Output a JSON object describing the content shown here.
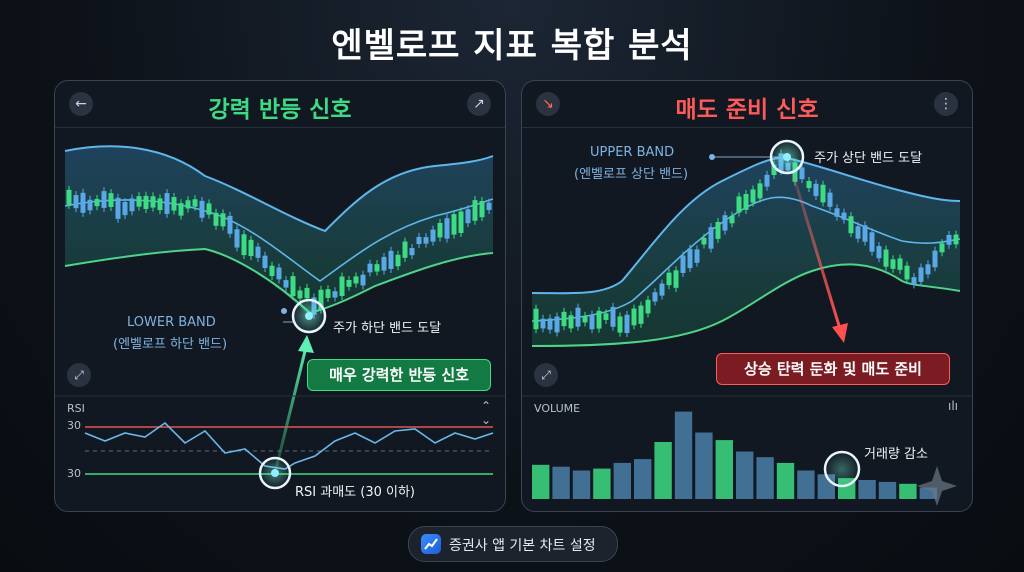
{
  "title": "엔벨로프 지표 복합 분석",
  "left_panel": {
    "title": "강력 반등 신호",
    "title_color": "#3ddc84",
    "header_left_icon": "arrow-left-icon",
    "header_right_icon": "trending-up-icon",
    "lower_band_label": "LOWER BAND",
    "lower_band_sub": "(엔벨로프 하단 밴드)",
    "touch_label": "주가 하단 밴드 도달",
    "signal_badge": "매우 강력한 반등 신호",
    "rsi_title": "RSI",
    "rsi_top_tick": "30",
    "rsi_bottom_tick": "30",
    "rsi_note": "RSI 과매도 (30 이하)"
  },
  "right_panel": {
    "title": "매도 준비 신호",
    "title_color": "#ff5a5a",
    "header_left_icon": "arrow-down-right-icon",
    "header_right_icon": "more-vertical-icon",
    "upper_band_label": "UPPER BAND",
    "upper_band_sub": "(엔벨로프 상단 밴드)",
    "touch_label": "주가 상단 밴드 도달",
    "signal_badge": "상승 탄력 둔화 및 매도 준비",
    "volume_title": "VOLUME",
    "volume_note": "거래량 감소"
  },
  "footer_button": "증권사 앱 기본 차트 설정",
  "chart_data": [
    {
      "type": "line",
      "title": "강력 반등 신호",
      "series": [
        {
          "name": "LOWER BAND",
          "values": [
            -0.78,
            -0.88,
            -1.02,
            -1.35,
            -1.55,
            -1.4,
            -0.9,
            -0.55,
            -0.5
          ]
        },
        {
          "name": "RSI",
          "values": [
            62,
            58,
            65,
            52,
            45,
            30,
            48,
            58,
            55
          ]
        }
      ],
      "rsi_levels": [
        30,
        70
      ]
    },
    {
      "type": "line",
      "title": "매도 준비 신호",
      "series": [
        {
          "name": "UPPER BAND",
          "values": [
            0.5,
            0.55,
            0.9,
            1.4,
            1.8,
            1.6,
            1.35,
            1.25,
            1.3
          ]
        },
        {
          "name": "VOLUME",
          "values": [
            36,
            34,
            30,
            32,
            38,
            42,
            60,
            92,
            70,
            62,
            50,
            44,
            38,
            30,
            26,
            22,
            20,
            18,
            16,
            12
          ]
        }
      ]
    }
  ]
}
